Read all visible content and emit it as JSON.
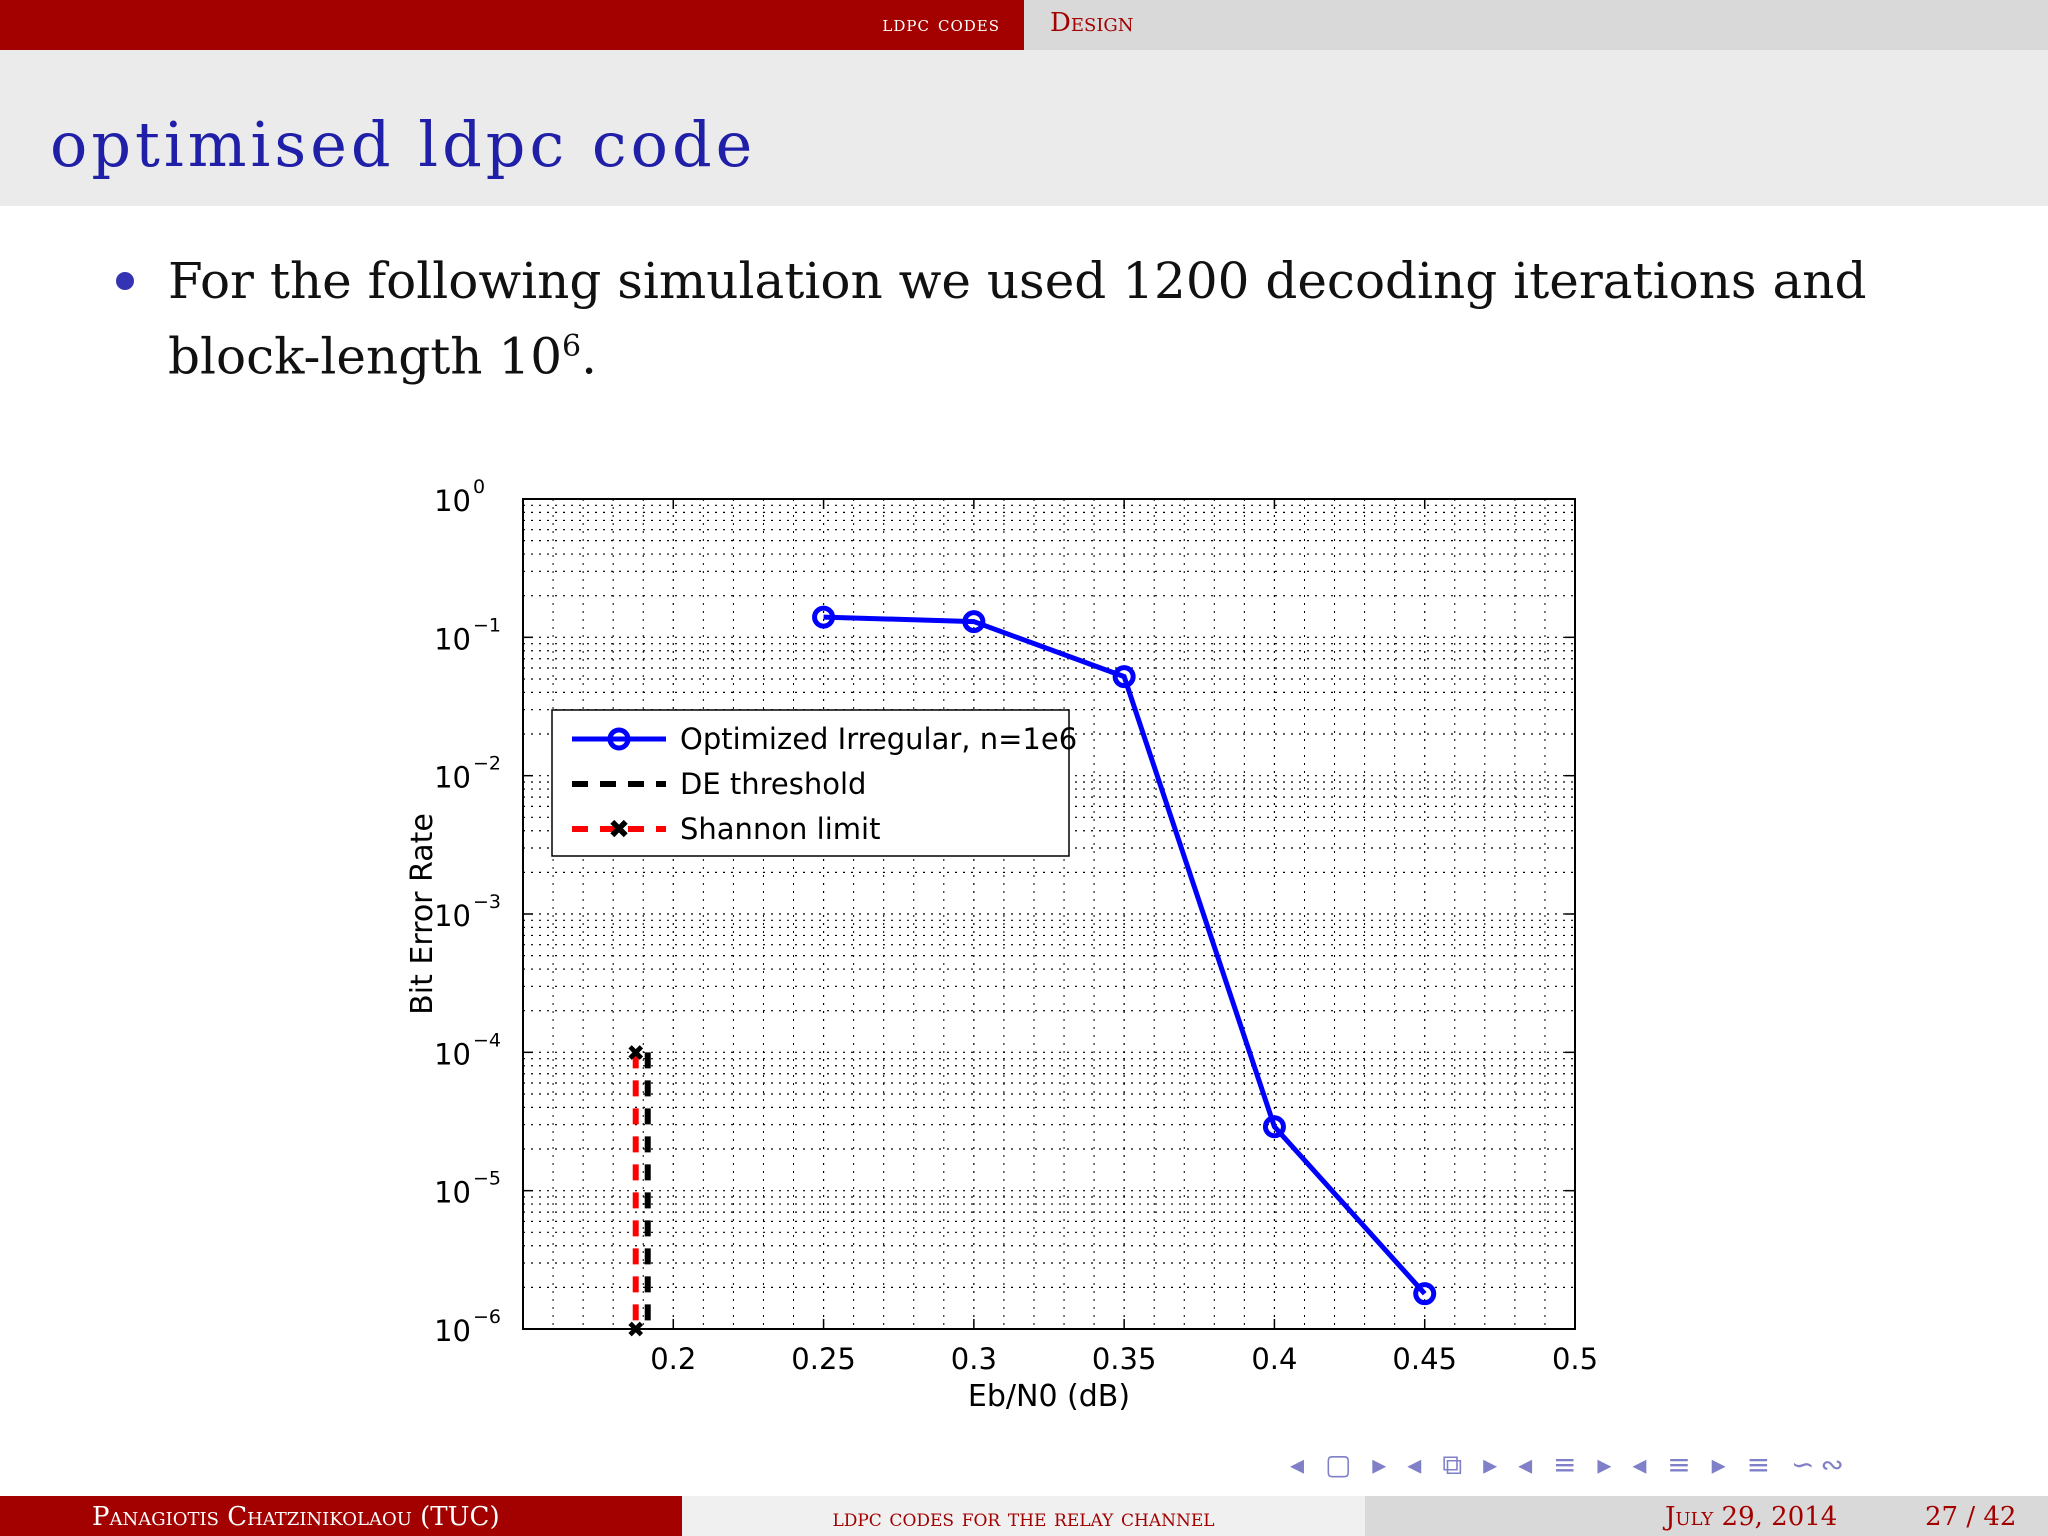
{
  "nav": {
    "section": "ldpc codes",
    "subsection": "Design"
  },
  "title": "optimised ldpc code",
  "bullet": {
    "text_before": "For the following simulation we used 1200 decoding iterations and block-length 10",
    "sup": "6",
    "text_after": "."
  },
  "nav_symbols": "◂ ▢ ▸ ◂ ⧉ ▸ ◂ ≡ ▸ ◂ ≡ ▸ ≡ ∽∾",
  "footer": {
    "author": "Panagiotis Chatzinikolaou (TUC)",
    "talk_title": "ldpc codes for the relay channel",
    "date": "July 29, 2014",
    "page": "27 / 42"
  },
  "colors": {
    "accent": "#a30000",
    "title": "#1f1fa8",
    "series_blue": "#0000ff",
    "series_black": "#000000",
    "series_red": "#ff0000"
  },
  "chart_data": {
    "type": "line",
    "xlabel": "Eb/N0 (dB)",
    "ylabel": "Bit Error Rate",
    "xlim": [
      0.15,
      0.5
    ],
    "ylim_exp": [
      -6,
      0
    ],
    "yscale": "log",
    "grid": true,
    "x_ticks": [
      0.2,
      0.25,
      0.3,
      0.35,
      0.4,
      0.45,
      0.5
    ],
    "x_tick_labels": [
      "0.2",
      "0.25",
      "0.3",
      "0.35",
      "0.4",
      "0.45",
      "0.5"
    ],
    "y_tick_exps": [
      0,
      -1,
      -2,
      -3,
      -4,
      -5,
      -6
    ],
    "y_tick_exp_labels": [
      "0",
      "−1",
      "−2",
      "−3",
      "−4",
      "−5",
      "−6"
    ],
    "legend_placement": "middle-left",
    "series": [
      {
        "name": "Optimized Irregular, n=1e6",
        "x": [
          0.25,
          0.3,
          0.35,
          0.4,
          0.45
        ],
        "y": [
          0.14,
          0.13,
          0.052,
          2.9e-05,
          1.8e-06
        ],
        "color": "#0000ff",
        "style": "solid-circle"
      },
      {
        "name": "DE threshold",
        "x": [
          0.1915,
          0.1915
        ],
        "y": [
          0.0001,
          1e-06
        ],
        "color": "#000000",
        "style": "dashed"
      },
      {
        "name": "Shannon limit",
        "x": [
          0.1875,
          0.1875
        ],
        "y": [
          0.0001,
          1e-06
        ],
        "color": "#ff0000",
        "style": "dashed-x"
      }
    ]
  }
}
